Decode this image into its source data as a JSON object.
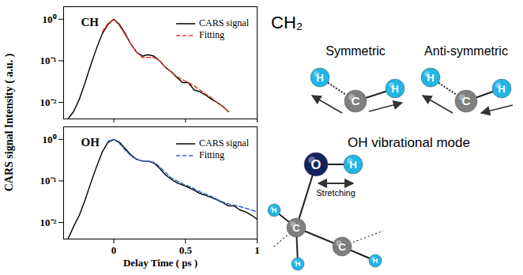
{
  "chart_data": [
    {
      "type": "line",
      "title": "CH",
      "ylabel": "CARS signal Intensity ( a.u. )",
      "xlim": [
        -0.35,
        1.0
      ],
      "xticks": [
        0,
        0.5,
        1
      ],
      "ylim": [
        0.004,
        2
      ],
      "yticks": [
        {
          "value": 1,
          "label": "10⁰"
        },
        {
          "value": 0.1,
          "label": "10⁻¹"
        },
        {
          "value": 0.01,
          "label": "10⁻²"
        }
      ],
      "log": "y",
      "tick_labels": "y",
      "legend": "top-right",
      "series": [
        {
          "name": "CARS signal",
          "color": "#000000",
          "line_style": "solid",
          "x": [
            -0.32,
            -0.28,
            -0.24,
            -0.2,
            -0.16,
            -0.12,
            -0.08,
            -0.04,
            0,
            0.04,
            0.08,
            0.12,
            0.16,
            0.2,
            0.24,
            0.28,
            0.32,
            0.36,
            0.4,
            0.44,
            0.48,
            0.52,
            0.56,
            0.6,
            0.64,
            0.68,
            0.72,
            0.76,
            0.8
          ],
          "values": [
            0.004,
            0.006,
            0.012,
            0.03,
            0.08,
            0.2,
            0.45,
            0.75,
            1.0,
            0.75,
            0.45,
            0.25,
            0.16,
            0.13,
            0.14,
            0.13,
            0.1,
            0.07,
            0.055,
            0.04,
            0.03,
            0.03,
            0.02,
            0.018,
            0.015,
            0.012,
            0.01,
            0.008,
            0.006
          ]
        },
        {
          "name": "Fitting",
          "color": "#e8382b",
          "line_style": "dashed",
          "x": [
            -0.08,
            -0.04,
            0,
            0.04,
            0.08,
            0.12,
            0.16,
            0.2,
            0.24,
            0.28,
            0.32,
            0.36,
            0.4,
            0.44,
            0.48,
            0.52,
            0.56,
            0.6,
            0.64,
            0.68,
            0.72,
            0.76,
            0.8
          ],
          "values": [
            0.5,
            0.8,
            1.0,
            0.7,
            0.42,
            0.25,
            0.16,
            0.12,
            0.12,
            0.12,
            0.1,
            0.07,
            0.055,
            0.042,
            0.035,
            0.03,
            0.025,
            0.02,
            0.016,
            0.013,
            0.01,
            0.008,
            0.006
          ]
        }
      ]
    },
    {
      "type": "line",
      "title": "OH",
      "xlabel": "Delay Time ( ps )",
      "xlim": [
        -0.35,
        1.0
      ],
      "xticks": [
        0,
        0.5,
        1
      ],
      "ylim": [
        0.004,
        2
      ],
      "yticks": [
        {
          "value": 1,
          "label": "10⁰"
        },
        {
          "value": 0.1,
          "label": "10⁻¹"
        },
        {
          "value": 0.01,
          "label": "10⁻²"
        }
      ],
      "log": "y",
      "legend": "top-right",
      "series": [
        {
          "name": "CARS signal",
          "color": "#000000",
          "line_style": "solid",
          "x": [
            -0.32,
            -0.28,
            -0.24,
            -0.2,
            -0.16,
            -0.12,
            -0.08,
            -0.04,
            0,
            0.04,
            0.08,
            0.12,
            0.16,
            0.2,
            0.24,
            0.28,
            0.32,
            0.36,
            0.4,
            0.44,
            0.48,
            0.52,
            0.56,
            0.6,
            0.64,
            0.68,
            0.72,
            0.76,
            0.8,
            0.84,
            0.88,
            0.92,
            0.96,
            1.0
          ],
          "values": [
            0.004,
            0.008,
            0.015,
            0.035,
            0.09,
            0.22,
            0.5,
            0.85,
            1.0,
            0.85,
            0.6,
            0.42,
            0.33,
            0.3,
            0.3,
            0.27,
            0.2,
            0.14,
            0.11,
            0.09,
            0.08,
            0.07,
            0.06,
            0.05,
            0.045,
            0.04,
            0.035,
            0.03,
            0.025,
            0.025,
            0.02,
            0.018,
            0.015,
            0.012
          ]
        },
        {
          "name": "Fitting",
          "color": "#2f5fd0",
          "line_style": "dashed",
          "x": [
            -0.04,
            0,
            0.04,
            0.08,
            0.12,
            0.16,
            0.2,
            0.24,
            0.28,
            0.32,
            0.36,
            0.4,
            0.44,
            0.48,
            0.52,
            0.56,
            0.6,
            0.64,
            0.68,
            0.72,
            0.76,
            0.8,
            0.84,
            0.88,
            0.92,
            0.96,
            1.0
          ],
          "values": [
            0.9,
            1.0,
            0.8,
            0.55,
            0.4,
            0.33,
            0.3,
            0.3,
            0.28,
            0.22,
            0.16,
            0.12,
            0.1,
            0.085,
            0.075,
            0.065,
            0.055,
            0.048,
            0.042,
            0.036,
            0.031,
            0.028,
            0.026,
            0.024,
            0.022,
            0.02,
            0.018
          ]
        }
      ]
    }
  ],
  "diagram": {
    "title": "CH₂",
    "modes": [
      {
        "label": "Symmetric",
        "atoms": [
          "H",
          "C",
          "H"
        ]
      },
      {
        "label": "Anti-symmetric",
        "atoms": [
          "H",
          "C",
          "H"
        ]
      }
    ],
    "oh_mode": {
      "label": "OH vibrational mode",
      "atoms": [
        "O",
        "H",
        "C",
        "C",
        "H",
        "H",
        "H"
      ],
      "bond_label": "Stretching"
    }
  }
}
